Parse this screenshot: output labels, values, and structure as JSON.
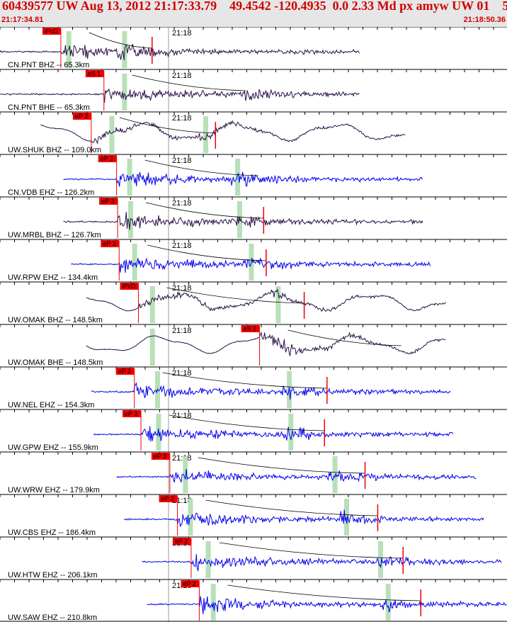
{
  "header": {
    "title": "60439577 UW Aug 13, 2012 21:17:33.79    49.4542 -120.4935  0.0 2.33 Md px amyw UW 01    5",
    "start_time": "21:17:34.81",
    "end_time": "21:18:50.36"
  },
  "colors": {
    "header_bg": "#e6e6e6",
    "header_text": "#d00000",
    "trace_bhz": "#2a1148",
    "trace_ehz": "#0000ee",
    "pick": "#ee0000",
    "phase_band": "#b8e0b8",
    "curve": "#000000"
  },
  "chart_data": {
    "type": "seismogram",
    "time_range": [
      "21:17:34.81",
      "21:18:50.36"
    ],
    "minute_label": "21:18",
    "traces": [
      {
        "station": "CN.PNT BHZ -- 65.3km",
        "component": "BHZ",
        "color": "#2a1148",
        "pick_label": "iPcD",
        "pick": 0.12,
        "start": 0.0,
        "end": 0.71,
        "band1": 0.135,
        "band2": 0.245,
        "red_tick": 0.3,
        "lowfreq": false
      },
      {
        "station": "CN.PNT BHE -- 65.3km",
        "component": "BHE",
        "color": "#2a1148",
        "pick_label": "eS 1",
        "pick": 0.205,
        "start": 0.0,
        "end": 0.71,
        "band1": 0.245,
        "band2": null,
        "red_tick": null,
        "lowfreq": false
      },
      {
        "station": "UW.SHUK BHZ -- 109.0km",
        "component": "BHZ",
        "color": "#2a1148",
        "pick_label": "eP 2",
        "pick": 0.18,
        "start": 0.08,
        "end": 0.8,
        "band1": 0.22,
        "band2": 0.405,
        "red_tick": 0.425,
        "lowfreq": true
      },
      {
        "station": "CN.VDB EHZ -- 126.2km",
        "component": "EHZ",
        "color": "#0000ee",
        "pick_label": "eP 3",
        "pick": 0.23,
        "start": 0.125,
        "end": 0.835,
        "band1": 0.255,
        "band2": 0.468,
        "red_tick": null,
        "lowfreq": false
      },
      {
        "station": "UW.MRBL BHZ -- 126.7km",
        "component": "BHZ",
        "color": "#2a1148",
        "pick_label": "eP 3",
        "pick": 0.232,
        "start": 0.125,
        "end": 0.835,
        "band1": 0.257,
        "band2": 0.472,
        "red_tick": 0.52,
        "lowfreq": false
      },
      {
        "station": "UW.RPW EHZ -- 134.4km",
        "component": "EHZ",
        "color": "#0000ee",
        "pick_label": "eP 3",
        "pick": 0.235,
        "start": 0.14,
        "end": 0.85,
        "band1": 0.265,
        "band2": 0.495,
        "red_tick": 0.525,
        "lowfreq": false
      },
      {
        "station": "UW.OMAK BHZ -- 148.5km",
        "component": "BHZ",
        "color": "#2a1148",
        "pick_label": "iPcD",
        "pick": 0.273,
        "start": 0.17,
        "end": 0.88,
        "band1": 0.3,
        "band2": 0.548,
        "red_tick": 0.6,
        "lowfreq": true
      },
      {
        "station": "UW.OMAK BHE -- 148.5km",
        "component": "BHE",
        "color": "#2a1148",
        "pick_label": "eS 2",
        "pick": 0.512,
        "start": 0.17,
        "end": 0.88,
        "band1": 0.3,
        "band2": null,
        "red_tick": null,
        "lowfreq": true
      },
      {
        "station": "UW.NEL EHZ -- 154.3km",
        "component": "EHZ",
        "color": "#0000ee",
        "pick_label": "eP 3",
        "pick": 0.265,
        "start": 0.18,
        "end": 0.89,
        "band1": 0.31,
        "band2": 0.57,
        "red_tick": 0.645,
        "lowfreq": false
      },
      {
        "station": "UW.GPW EHZ -- 155.9km",
        "component": "EHZ",
        "color": "#0000ee",
        "pick_label": "eP 3",
        "pick": 0.278,
        "start": 0.185,
        "end": 0.895,
        "band1": 0.312,
        "band2": 0.573,
        "red_tick": 0.64,
        "lowfreq": false
      },
      {
        "station": "UW.WRW EHZ -- 179.9km",
        "component": "EHZ",
        "color": "#0000ee",
        "pick_label": "eP 3",
        "pick": 0.335,
        "start": 0.23,
        "end": 0.94,
        "band1": 0.365,
        "band2": 0.66,
        "red_tick": 0.72,
        "lowfreq": false
      },
      {
        "station": "UW.CBS EHZ -- 186.4km",
        "component": "EHZ",
        "color": "#0000ee",
        "pick_label": "eP 2",
        "pick": 0.35,
        "start": 0.245,
        "end": 0.955,
        "band1": 0.375,
        "band2": 0.683,
        "red_tick": 0.745,
        "lowfreq": false
      },
      {
        "station": "UW.HTW EHZ -- 206.1km",
        "component": "EHZ",
        "color": "#0000ee",
        "pick_label": "eP 2",
        "pick": 0.377,
        "start": 0.28,
        "end": 0.99,
        "band1": 0.41,
        "band2": 0.75,
        "red_tick": 0.795,
        "lowfreq": false
      },
      {
        "station": "UW.SAW EHZ -- 210.8km",
        "component": "EHZ",
        "color": "#0000ee",
        "pick_label": "eP 2",
        "pick": 0.393,
        "start": 0.29,
        "end": 1.0,
        "band1": 0.42,
        "band2": 0.765,
        "red_tick": 0.83,
        "lowfreq": false
      }
    ]
  }
}
